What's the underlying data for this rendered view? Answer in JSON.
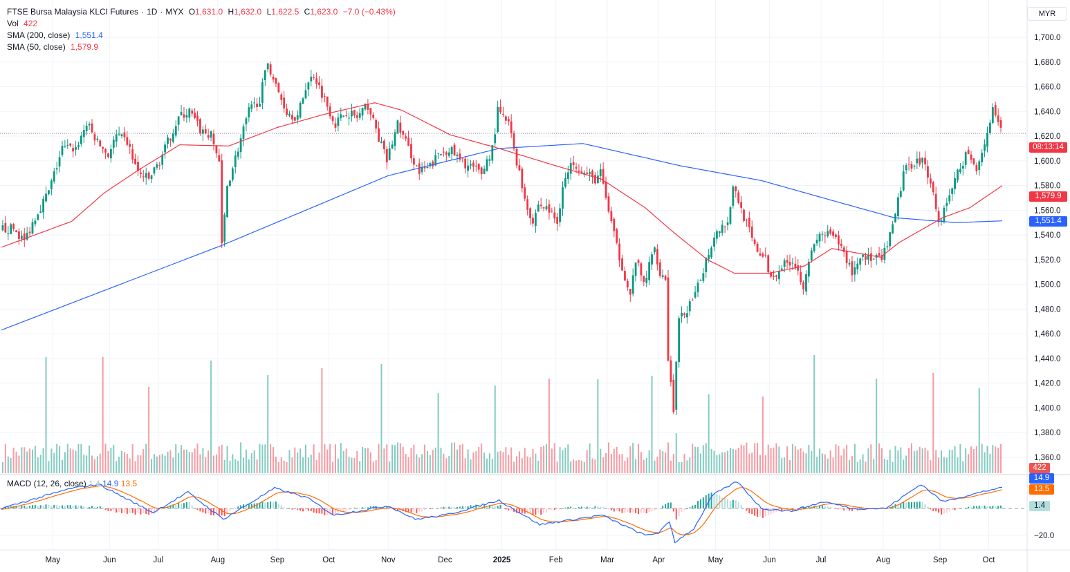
{
  "header": {
    "symbol": "FTSE Bursa Malaysia KLCI Futures",
    "interval": "1D",
    "exchange": "MYX",
    "o_label": "O",
    "open": "1,631.0",
    "h_label": "H",
    "high": "1,632.0",
    "l_label": "L",
    "low": "1,622.5",
    "c_label": "C",
    "close": "1,623.0",
    "change": "−7.0 (−0.43%)",
    "vol_label": "Vol",
    "vol": "422",
    "sma200_label": "SMA (200, close)",
    "sma200": "1,551.4",
    "sma50_label": "SMA (50, close)",
    "sma50": "1,579.9",
    "macd_label": "MACD (12, 26, close)",
    "macd_hist": "1.4",
    "macd": "14.9",
    "signal": "13.5"
  },
  "currency": "MYR",
  "tags": {
    "countdown": "08:13:14",
    "sma50": "1,579.9",
    "sma200": "1,551.4",
    "volume": "422",
    "macd": "14.9",
    "signal": "13.5",
    "hist": "1.4"
  },
  "colors": {
    "up": "#089981",
    "down": "#f23645",
    "sma200": "#2962ff",
    "sma50": "#f23645",
    "macd": "#2962ff",
    "signal": "#ff6d00"
  },
  "chart_data": {
    "type": "candlestick",
    "title": "FTSE Bursa Malaysia KLCI Futures · 1D · MYX",
    "ylim": [
      1350,
      1710
    ],
    "y_ticks": [
      "1,700.0",
      "1,680.0",
      "1,660.0",
      "1,640.0",
      "1,620.0",
      "1,600.0",
      "1,580.0",
      "1,560.0",
      "1,540.0",
      "1,520.0",
      "1,500.0",
      "1,480.0",
      "1,460.0",
      "1,440.0",
      "1,420.0",
      "1,400.0",
      "1,380.0",
      "1,360.0"
    ],
    "x_ticks": [
      {
        "label": "May",
        "day": 19
      },
      {
        "label": "Jun",
        "day": 40
      },
      {
        "label": "Jul",
        "day": 58
      },
      {
        "label": "Aug",
        "day": 80
      },
      {
        "label": "Sep",
        "day": 102
      },
      {
        "label": "Oct",
        "day": 121
      },
      {
        "label": "Nov",
        "day": 143
      },
      {
        "label": "Dec",
        "day": 164
      },
      {
        "label": "2025",
        "day": 185
      },
      {
        "label": "Feb",
        "day": 205
      },
      {
        "label": "Mar",
        "day": 224
      },
      {
        "label": "Apr",
        "day": 243
      },
      {
        "label": "May",
        "day": 264
      },
      {
        "label": "Jun",
        "day": 284
      },
      {
        "label": "Jul",
        "day": 303
      },
      {
        "label": "Aug",
        "day": 326
      },
      {
        "label": "Sep",
        "day": 347
      },
      {
        "label": "Oct",
        "day": 365
      }
    ],
    "total_days": 370,
    "close_anchors": [
      [
        0,
        1545
      ],
      [
        5,
        1545
      ],
      [
        9,
        1535
      ],
      [
        13,
        1555
      ],
      [
        18,
        1575
      ],
      [
        23,
        1610
      ],
      [
        28,
        1610
      ],
      [
        32,
        1630
      ],
      [
        36,
        1615
      ],
      [
        40,
        1605
      ],
      [
        43,
        1620
      ],
      [
        47,
        1615
      ],
      [
        51,
        1590
      ],
      [
        55,
        1585
      ],
      [
        59,
        1600
      ],
      [
        63,
        1620
      ],
      [
        66,
        1635
      ],
      [
        70,
        1640
      ],
      [
        74,
        1625
      ],
      [
        78,
        1620
      ],
      [
        81,
        1600
      ],
      [
        82,
        1530
      ],
      [
        84,
        1580
      ],
      [
        88,
        1610
      ],
      [
        92,
        1640
      ],
      [
        96,
        1650
      ],
      [
        99,
        1680
      ],
      [
        102,
        1660
      ],
      [
        106,
        1640
      ],
      [
        110,
        1635
      ],
      [
        113,
        1660
      ],
      [
        116,
        1670
      ],
      [
        120,
        1650
      ],
      [
        124,
        1630
      ],
      [
        128,
        1640
      ],
      [
        132,
        1635
      ],
      [
        136,
        1645
      ],
      [
        139,
        1625
      ],
      [
        143,
        1600
      ],
      [
        147,
        1630
      ],
      [
        151,
        1610
      ],
      [
        155,
        1590
      ],
      [
        159,
        1595
      ],
      [
        162,
        1605
      ],
      [
        166,
        1610
      ],
      [
        170,
        1600
      ],
      [
        174,
        1595
      ],
      [
        178,
        1590
      ],
      [
        182,
        1610
      ],
      [
        184,
        1640
      ],
      [
        188,
        1630
      ],
      [
        191,
        1600
      ],
      [
        194,
        1570
      ],
      [
        197,
        1550
      ],
      [
        199,
        1565
      ],
      [
        203,
        1560
      ],
      [
        206,
        1550
      ],
      [
        208,
        1580
      ],
      [
        212,
        1600
      ],
      [
        216,
        1590
      ],
      [
        220,
        1585
      ],
      [
        222,
        1590
      ],
      [
        225,
        1560
      ],
      [
        228,
        1530
      ],
      [
        230,
        1515
      ],
      [
        233,
        1490
      ],
      [
        235,
        1520
      ],
      [
        238,
        1500
      ],
      [
        242,
        1530
      ],
      [
        244,
        1510
      ],
      [
        246,
        1505
      ],
      [
        247,
        1440
      ],
      [
        249,
        1400
      ],
      [
        251,
        1470
      ],
      [
        254,
        1480
      ],
      [
        257,
        1490
      ],
      [
        261,
        1520
      ],
      [
        265,
        1545
      ],
      [
        269,
        1550
      ],
      [
        271,
        1580
      ],
      [
        275,
        1555
      ],
      [
        279,
        1530
      ],
      [
        283,
        1520
      ],
      [
        285,
        1505
      ],
      [
        289,
        1515
      ],
      [
        293,
        1520
      ],
      [
        297,
        1500
      ],
      [
        299,
        1520
      ],
      [
        303,
        1540
      ],
      [
        307,
        1540
      ],
      [
        311,
        1530
      ],
      [
        315,
        1510
      ],
      [
        319,
        1525
      ],
      [
        322,
        1520
      ],
      [
        326,
        1520
      ],
      [
        330,
        1545
      ],
      [
        334,
        1590
      ],
      [
        338,
        1600
      ],
      [
        341,
        1600
      ],
      [
        344,
        1585
      ],
      [
        347,
        1550
      ],
      [
        349,
        1560
      ],
      [
        353,
        1585
      ],
      [
        357,
        1605
      ],
      [
        361,
        1595
      ],
      [
        364,
        1615
      ],
      [
        367,
        1640
      ],
      [
        370,
        1623
      ]
    ],
    "sma200_anchors": [
      [
        0,
        1463
      ],
      [
        82,
        1532
      ],
      [
        143,
        1588
      ],
      [
        184,
        1610
      ],
      [
        215,
        1614
      ],
      [
        251,
        1596
      ],
      [
        281,
        1584
      ],
      [
        307,
        1568
      ],
      [
        330,
        1554
      ],
      [
        353,
        1550
      ],
      [
        370,
        1551.4
      ]
    ],
    "sma50_anchors": [
      [
        0,
        1530
      ],
      [
        26,
        1551
      ],
      [
        38,
        1574
      ],
      [
        51,
        1593
      ],
      [
        66,
        1613
      ],
      [
        84,
        1612
      ],
      [
        102,
        1627
      ],
      [
        120,
        1638
      ],
      [
        138,
        1647
      ],
      [
        148,
        1641
      ],
      [
        166,
        1621
      ],
      [
        184,
        1610
      ],
      [
        205,
        1596
      ],
      [
        222,
        1585
      ],
      [
        238,
        1562
      ],
      [
        248,
        1543
      ],
      [
        261,
        1520
      ],
      [
        271,
        1509
      ],
      [
        284,
        1509
      ],
      [
        297,
        1515
      ],
      [
        307,
        1529
      ],
      [
        325,
        1522
      ],
      [
        332,
        1534
      ],
      [
        348,
        1554
      ],
      [
        358,
        1562
      ],
      [
        370,
        1579.9
      ]
    ],
    "volume_base": 190,
    "volume_spikes": [
      [
        16,
        1000
      ],
      [
        37,
        1000
      ],
      [
        54,
        744
      ],
      [
        77,
        970
      ],
      [
        98,
        845
      ],
      [
        118,
        905
      ],
      [
        140,
        940
      ],
      [
        161,
        690
      ],
      [
        182,
        756
      ],
      [
        202,
        815
      ],
      [
        220,
        810
      ],
      [
        240,
        840
      ],
      [
        249,
        345
      ],
      [
        261,
        680
      ],
      [
        281,
        660
      ],
      [
        300,
        1018
      ],
      [
        323,
        815
      ],
      [
        344,
        863
      ],
      [
        361,
        732
      ]
    ],
    "macd_anchors": [
      [
        0,
        0
      ],
      [
        26,
        15
      ],
      [
        36,
        18
      ],
      [
        56,
        -3
      ],
      [
        69,
        12
      ],
      [
        82,
        -8
      ],
      [
        101,
        15
      ],
      [
        113,
        8
      ],
      [
        123,
        -5
      ],
      [
        143,
        2
      ],
      [
        153,
        -8
      ],
      [
        164,
        -5
      ],
      [
        184,
        6
      ],
      [
        199,
        -12
      ],
      [
        212,
        -8
      ],
      [
        222,
        -5
      ],
      [
        238,
        -20
      ],
      [
        243,
        -18
      ],
      [
        247,
        -10
      ],
      [
        249,
        -25
      ],
      [
        256,
        -15
      ],
      [
        263,
        10
      ],
      [
        272,
        20
      ],
      [
        281,
        0
      ],
      [
        292,
        -2
      ],
      [
        304,
        5
      ],
      [
        315,
        0
      ],
      [
        327,
        0
      ],
      [
        340,
        18
      ],
      [
        348,
        5
      ],
      [
        358,
        10
      ],
      [
        368,
        14.9
      ],
      [
        370,
        14.9
      ]
    ],
    "macd_ylim": [
      -30,
      25
    ]
  }
}
